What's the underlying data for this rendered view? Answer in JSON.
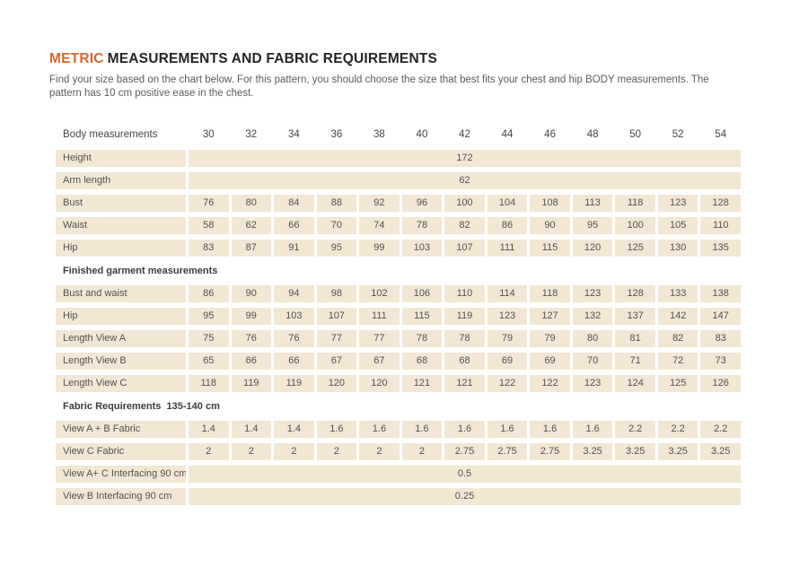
{
  "header": {
    "title_accent": "METRIC",
    "title_rest": "MEASUREMENTS AND FABRIC REQUIREMENTS",
    "subtitle": "Find your size based on the chart below. For this pattern, you should choose the size that best fits your chest and hip BODY measurements. The pattern has 10 cm positive ease in the chest."
  },
  "colors": {
    "accent_orange": "#cf6a33",
    "cell_beige": "#f1e7d4",
    "title_dark": "#262324",
    "intro_gray": "#5b5b5d",
    "cell_text": "#55524c"
  },
  "table": {
    "header": {
      "label": "Body measurements",
      "sizes": [
        "30",
        "32",
        "34",
        "36",
        "38",
        "40",
        "42",
        "44",
        "46",
        "48",
        "50",
        "52",
        "54"
      ]
    },
    "rows": [
      {
        "type": "span",
        "label": "Height",
        "value": "172"
      },
      {
        "type": "span",
        "label": "Arm length",
        "value": "62"
      },
      {
        "type": "values",
        "label": "Bust",
        "values": [
          "76",
          "80",
          "84",
          "88",
          "92",
          "96",
          "100",
          "104",
          "108",
          "113",
          "118",
          "123",
          "128"
        ]
      },
      {
        "type": "values",
        "label": "Waist",
        "values": [
          "58",
          "62",
          "66",
          "70",
          "74",
          "78",
          "82",
          "86",
          "90",
          "95",
          "100",
          "105",
          "110"
        ]
      },
      {
        "type": "values",
        "label": "Hip",
        "values": [
          "83",
          "87",
          "91",
          "95",
          "99",
          "103",
          "107",
          "111",
          "115",
          "120",
          "125",
          "130",
          "135"
        ]
      },
      {
        "type": "section",
        "label": "Finished garment measurements"
      },
      {
        "type": "values",
        "label": "Bust and waist",
        "values": [
          "86",
          "90",
          "94",
          "98",
          "102",
          "106",
          "110",
          "114",
          "118",
          "123",
          "128",
          "133",
          "138"
        ]
      },
      {
        "type": "values",
        "label": "Hip",
        "values": [
          "95",
          "99",
          "103",
          "107",
          "111",
          "115",
          "119",
          "123",
          "127",
          "132",
          "137",
          "142",
          "147"
        ]
      },
      {
        "type": "values",
        "label": "Length View A",
        "values": [
          "75",
          "76",
          "76",
          "77",
          "77",
          "78",
          "78",
          "79",
          "79",
          "80",
          "81",
          "82",
          "83"
        ]
      },
      {
        "type": "values",
        "label": "Length View B",
        "values": [
          "65",
          "66",
          "66",
          "67",
          "67",
          "68",
          "68",
          "69",
          "69",
          "70",
          "71",
          "72",
          "73"
        ]
      },
      {
        "type": "values",
        "label": "Length View C",
        "values": [
          "118",
          "119",
          "119",
          "120",
          "120",
          "121",
          "121",
          "122",
          "122",
          "123",
          "124",
          "125",
          "126"
        ]
      },
      {
        "type": "section",
        "label": "Fabric Requirements  135-140 cm"
      },
      {
        "type": "values",
        "label": "View A + B Fabric",
        "values": [
          "1.4",
          "1.4",
          "1.4",
          "1.6",
          "1.6",
          "1.6",
          "1.6",
          "1.6",
          "1.6",
          "1.6",
          "2.2",
          "2.2",
          "2.2"
        ]
      },
      {
        "type": "values",
        "label": "View C Fabric",
        "values": [
          "2",
          "2",
          "2",
          "2",
          "2",
          "2",
          "2.75",
          "2.75",
          "2.75",
          "3.25",
          "3.25",
          "3.25",
          "3.25"
        ]
      },
      {
        "type": "span",
        "label": "View A+ C Interfacing 90 cm",
        "value": "0.5"
      },
      {
        "type": "span",
        "label": "View B Interfacing 90 cm",
        "value": "0.25"
      }
    ]
  }
}
